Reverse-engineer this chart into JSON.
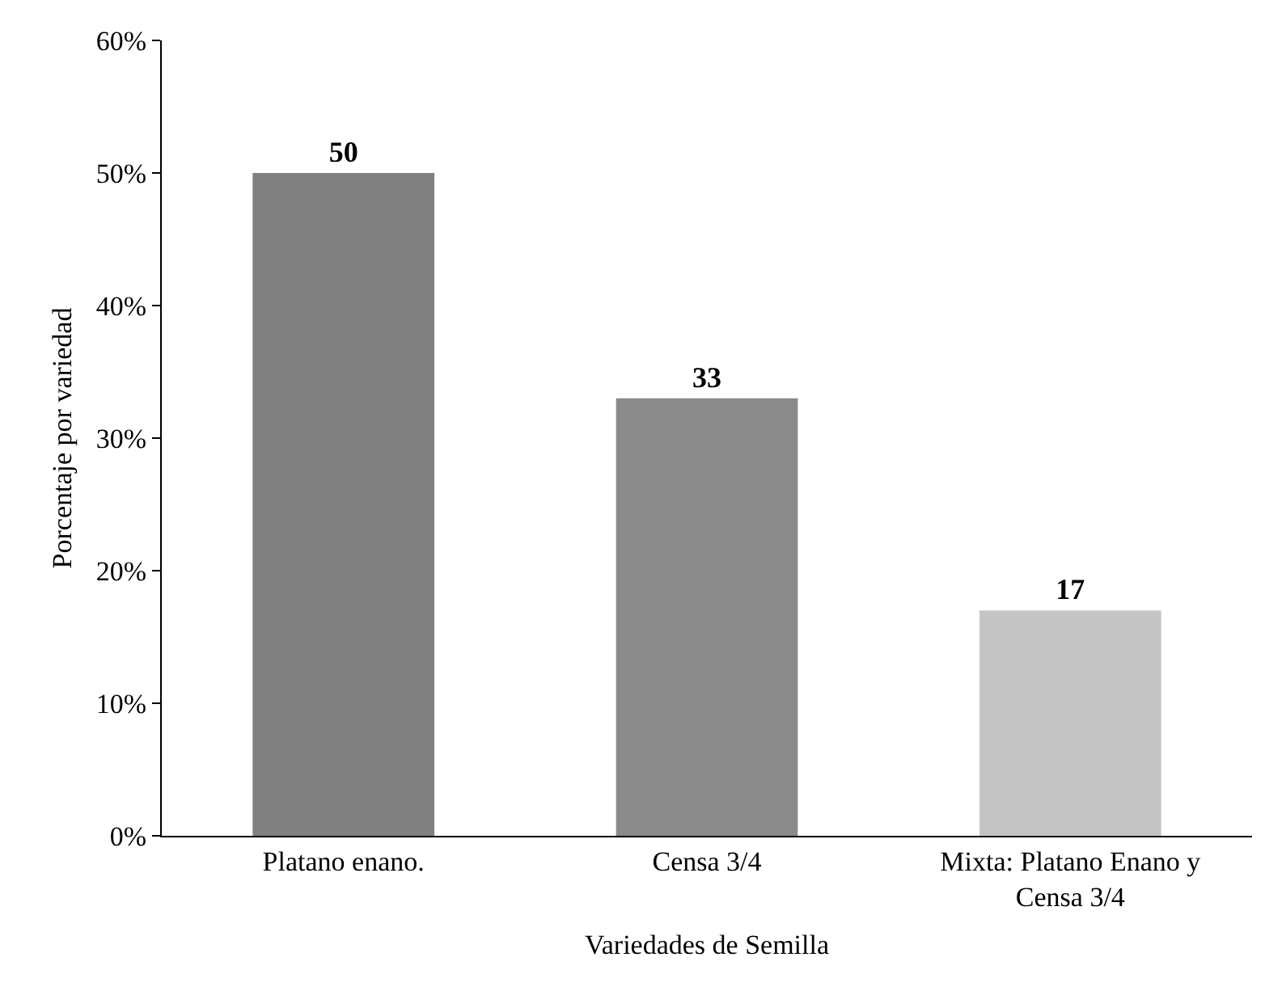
{
  "chart_data": {
    "type": "bar",
    "xlabel": "Variedades de Semilla",
    "ylabel": "Porcentaje por variedad",
    "categories": [
      "Platano enano.",
      "Censa 3/4",
      "Mixta: Platano Enano y Censa 3/4"
    ],
    "values": [
      50,
      33,
      17
    ],
    "colors": [
      "#808080",
      "#8a8a8a",
      "#c4c4c4"
    ],
    "ylim": [
      0,
      60
    ],
    "yticks": [
      {
        "value": 0,
        "label": "0%"
      },
      {
        "value": 10,
        "label": "10%"
      },
      {
        "value": 20,
        "label": "20%"
      },
      {
        "value": 30,
        "label": "30%"
      },
      {
        "value": 40,
        "label": "40%"
      },
      {
        "value": 50,
        "label": "50%"
      },
      {
        "value": 60,
        "label": "60%"
      }
    ],
    "data_labels": true,
    "grid": false
  }
}
